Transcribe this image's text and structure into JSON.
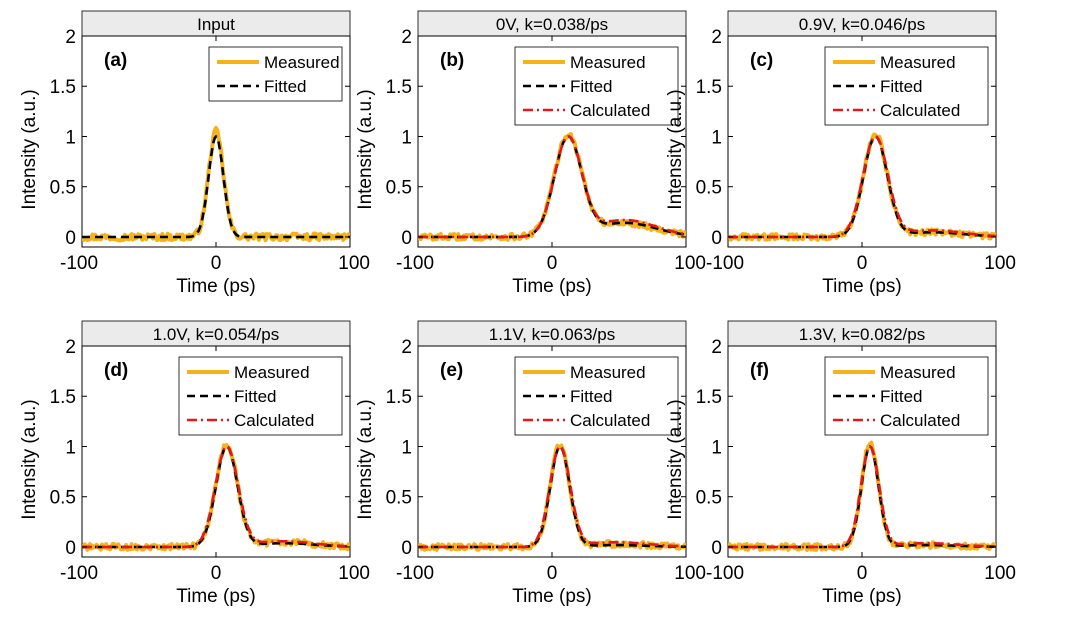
{
  "figure": {
    "colors": {
      "measured": "#F5B21C",
      "fitted": "#000000",
      "calculated": "#E0191C",
      "title_bar": "#EBEBEB",
      "axes": "#000000"
    }
  },
  "chart_data": [
    {
      "type": "line",
      "title": "Input",
      "panel_label": "(a)",
      "xlabel": "Time (ps)",
      "ylabel": "Intensity (a.u.)",
      "xlim": [
        -100,
        100
      ],
      "ylim": [
        -0.1,
        2
      ],
      "xticks": [
        "-100",
        "0",
        "100"
      ],
      "yticks": [
        "0",
        "0.5",
        "1",
        "1.5",
        "2"
      ],
      "legend_position": "top-right",
      "legend": [
        "Measured",
        "Fitted"
      ],
      "series": [
        {
          "name": "Measured",
          "peak_x": 0,
          "peak_y": 1.05,
          "width_ps": 13,
          "tail": 0,
          "noise": 0.035
        },
        {
          "name": "Fitted",
          "peak_x": 0,
          "peak_y": 1.0,
          "width_ps": 13,
          "tail": 0,
          "noise": 0
        }
      ]
    },
    {
      "type": "line",
      "title": "0V, k=0.038/ps",
      "panel_label": "(b)",
      "xlabel": "Time (ps)",
      "ylabel": "Intensity (a.u.)",
      "xlim": [
        -100,
        100
      ],
      "ylim": [
        -0.1,
        2
      ],
      "xticks": [
        "-100",
        "0",
        "100"
      ],
      "yticks": [
        "0",
        "0.5",
        "1",
        "1.5",
        "2"
      ],
      "legend_position": "top-right",
      "legend": [
        "Measured",
        "Fitted",
        "Calculated"
      ],
      "series": [
        {
          "name": "Measured",
          "peak_x": 12,
          "peak_y": 1.02,
          "width_ps": 24,
          "tail": 0.15,
          "noise": 0.03
        },
        {
          "name": "Fitted",
          "peak_x": 12,
          "peak_y": 1.0,
          "width_ps": 24,
          "tail": 0.15,
          "noise": 0
        },
        {
          "name": "Calculated",
          "peak_x": 12,
          "peak_y": 1.0,
          "width_ps": 24,
          "tail": 0.18,
          "noise": 0
        }
      ]
    },
    {
      "type": "line",
      "title": "0.9V, k=0.046/ps",
      "panel_label": "(c)",
      "xlabel": "Time (ps)",
      "ylabel": "Intensity (a.u.)",
      "xlim": [
        -100,
        100
      ],
      "ylim": [
        -0.1,
        2
      ],
      "xticks": [
        "-100",
        "0",
        "100"
      ],
      "yticks": [
        "0",
        "0.5",
        "1",
        "1.5",
        "2"
      ],
      "legend_position": "top-right",
      "legend": [
        "Measured",
        "Fitted",
        "Calculated"
      ],
      "series": [
        {
          "name": "Measured",
          "peak_x": 10,
          "peak_y": 1.02,
          "width_ps": 21,
          "tail": 0.05,
          "noise": 0.03
        },
        {
          "name": "Fitted",
          "peak_x": 10,
          "peak_y": 1.0,
          "width_ps": 21,
          "tail": 0.05,
          "noise": 0
        },
        {
          "name": "Calculated",
          "peak_x": 10,
          "peak_y": 1.0,
          "width_ps": 22,
          "tail": 0.07,
          "noise": 0
        }
      ]
    },
    {
      "type": "line",
      "title": "1.0V, k=0.054/ps",
      "panel_label": "(d)",
      "xlabel": "Time (ps)",
      "ylabel": "Intensity (a.u.)",
      "xlim": [
        -100,
        100
      ],
      "ylim": [
        -0.1,
        2
      ],
      "xticks": [
        "-100",
        "0",
        "100"
      ],
      "yticks": [
        "0",
        "0.5",
        "1",
        "1.5",
        "2"
      ],
      "legend_position": "top-right",
      "legend": [
        "Measured",
        "Fitted",
        "Calculated"
      ],
      "series": [
        {
          "name": "Measured",
          "peak_x": 8,
          "peak_y": 1.02,
          "width_ps": 19,
          "tail": 0.05,
          "noise": 0.03
        },
        {
          "name": "Fitted",
          "peak_x": 8,
          "peak_y": 1.0,
          "width_ps": 19,
          "tail": 0.04,
          "noise": 0
        },
        {
          "name": "Calculated",
          "peak_x": 8,
          "peak_y": 1.0,
          "width_ps": 20,
          "tail": 0.06,
          "noise": 0
        }
      ]
    },
    {
      "type": "line",
      "title": "1.1V, k=0.063/ps",
      "panel_label": "(e)",
      "xlabel": "Time (ps)",
      "ylabel": "Intensity (a.u.)",
      "xlim": [
        -100,
        100
      ],
      "ylim": [
        -0.1,
        2
      ],
      "xticks": [
        "-100",
        "0",
        "100"
      ],
      "yticks": [
        "0",
        "0.5",
        "1",
        "1.5",
        "2"
      ],
      "legend_position": "top-right",
      "legend": [
        "Measured",
        "Fitted",
        "Calculated"
      ],
      "series": [
        {
          "name": "Measured",
          "peak_x": 6,
          "peak_y": 1.02,
          "width_ps": 17,
          "tail": 0.03,
          "noise": 0.03
        },
        {
          "name": "Fitted",
          "peak_x": 6,
          "peak_y": 1.0,
          "width_ps": 17,
          "tail": 0.02,
          "noise": 0
        },
        {
          "name": "Calculated",
          "peak_x": 6,
          "peak_y": 1.0,
          "width_ps": 18,
          "tail": 0.05,
          "noise": 0
        }
      ]
    },
    {
      "type": "line",
      "title": "1.3V, k=0.082/ps",
      "panel_label": "(f)",
      "xlabel": "Time (ps)",
      "ylabel": "Intensity (a.u.)",
      "xlim": [
        -100,
        100
      ],
      "ylim": [
        -0.1,
        2
      ],
      "xticks": [
        "-100",
        "0",
        "100"
      ],
      "yticks": [
        "0",
        "0.5",
        "1",
        "1.5",
        "2"
      ],
      "legend_position": "top-right",
      "legend": [
        "Measured",
        "Fitted",
        "Calculated"
      ],
      "series": [
        {
          "name": "Measured",
          "peak_x": 6,
          "peak_y": 1.04,
          "width_ps": 15,
          "tail": 0.02,
          "noise": 0.03
        },
        {
          "name": "Fitted",
          "peak_x": 6,
          "peak_y": 1.0,
          "width_ps": 15,
          "tail": 0.02,
          "noise": 0
        },
        {
          "name": "Calculated",
          "peak_x": 6,
          "peak_y": 1.0,
          "width_ps": 16,
          "tail": 0.04,
          "noise": 0
        }
      ]
    }
  ]
}
